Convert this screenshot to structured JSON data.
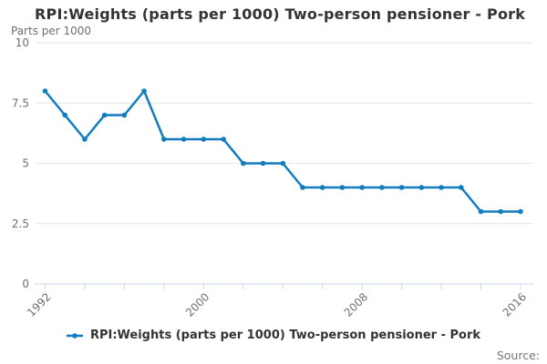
{
  "chart": {
    "title": "RPI:Weights (parts per 1000) Two-person pensioner - Pork",
    "y_axis_title": "Parts per 1000",
    "legend": {
      "label": "RPI:Weights (parts per 1000) Two-person pensioner - Pork"
    },
    "source_label": "Source:",
    "colors": {
      "series": "#117dbe",
      "grid": "#e6e6e6",
      "axis": "#ccd6eb",
      "muted_text": "#6e6e6e",
      "title_text": "#333333"
    }
  },
  "chart_data": {
    "type": "line",
    "title": "RPI:Weights (parts per 1000) Two-person pensioner - Pork",
    "series_name": "RPI:Weights (parts per 1000) Two-person pensioner - Pork",
    "xlabel": "",
    "ylabel": "Parts per 1000",
    "x": [
      1992,
      1993,
      1994,
      1995,
      1996,
      1997,
      1998,
      1999,
      2000,
      2001,
      2002,
      2003,
      2004,
      2005,
      2006,
      2007,
      2008,
      2009,
      2010,
      2011,
      2012,
      2013,
      2014,
      2015,
      2016
    ],
    "values": [
      8,
      7,
      6,
      7,
      7,
      8,
      6,
      6,
      6,
      6,
      5,
      5,
      5,
      4,
      4,
      4,
      4,
      4,
      4,
      4,
      4,
      4,
      3,
      3,
      3
    ],
    "ylim": [
      0,
      10
    ],
    "yticks": [
      0,
      2.5,
      5,
      7.5,
      10
    ],
    "ytick_labels": [
      "0",
      "2.5",
      "5",
      "7.5",
      "10"
    ],
    "xtick_step": 2,
    "xtick_label_values": [
      1992,
      2000,
      2008,
      2016
    ],
    "grid": "horizontal-only",
    "legend_position": "bottom-center",
    "marker": "dot"
  }
}
